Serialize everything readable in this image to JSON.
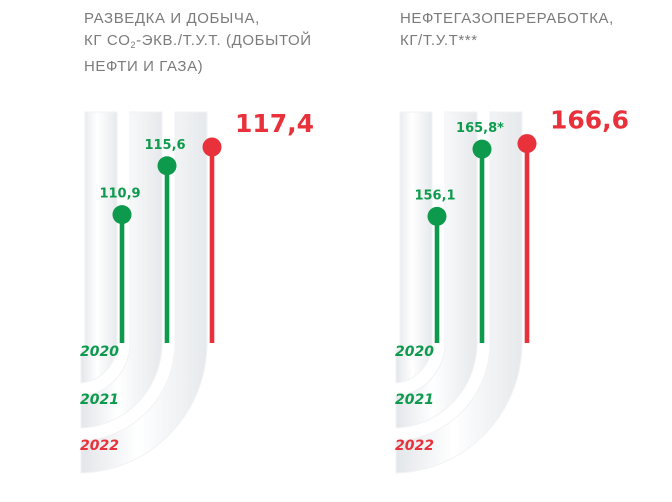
{
  "colors": {
    "prior": "#0e9a4d",
    "current": "#e8313a",
    "pipe": "#e9ecef",
    "title": "#7b7b7b"
  },
  "chart_data": [
    {
      "type": "bar",
      "title_lines": [
        "РАЗВЕДКА И ДОБЫЧА,",
        "КГ CO2-ЭКВ./Т.У.Т. (ДОБЫТОЙ",
        "НЕФТИ И ГАЗА)"
      ],
      "categories": [
        "2020",
        "2021",
        "2022"
      ],
      "values": [
        110.9,
        115.6,
        117.4
      ],
      "value_labels": [
        "110,9",
        "115,6",
        "117,4"
      ],
      "series_colors": [
        "prior",
        "prior",
        "current"
      ]
    },
    {
      "type": "bar",
      "title_lines": [
        "НЕФТЕГАЗОПЕРЕРАБОТКА,",
        "КГ/Т.У.Т***"
      ],
      "categories": [
        "2020",
        "2021",
        "2022"
      ],
      "values": [
        156.1,
        165.8,
        166.6
      ],
      "value_labels": [
        "156,1",
        "165,8*",
        "166,6"
      ],
      "series_colors": [
        "prior",
        "prior",
        "current"
      ]
    }
  ]
}
